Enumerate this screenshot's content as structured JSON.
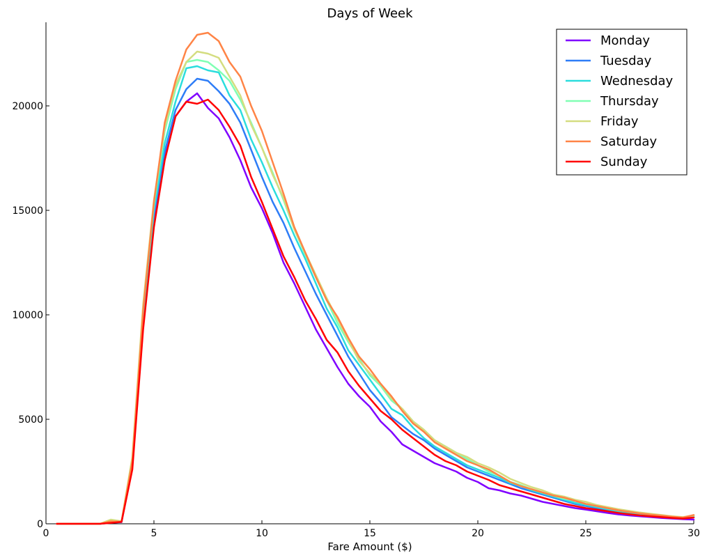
{
  "chart_data": {
    "type": "line",
    "title": "Days of Week",
    "xlabel": "Fare Amount ($)",
    "ylabel": "",
    "xlim": [
      0,
      30
    ],
    "ylim": [
      0,
      24000
    ],
    "xticks": [
      0,
      5,
      10,
      15,
      20,
      25,
      30
    ],
    "yticks": [
      0,
      5000,
      10000,
      15000,
      20000
    ],
    "grid": false,
    "legend_position": "top-right",
    "x": [
      0.5,
      1.0,
      1.5,
      2.0,
      2.5,
      3.0,
      3.5,
      4.0,
      4.5,
      5.0,
      5.5,
      6.0,
      6.5,
      7.0,
      7.5,
      8.0,
      8.5,
      9.0,
      9.5,
      10.0,
      10.5,
      11.0,
      11.5,
      12.0,
      12.5,
      13.0,
      13.5,
      14.0,
      14.5,
      15.0,
      15.5,
      16.0,
      16.5,
      17.0,
      17.5,
      18.0,
      18.5,
      19.0,
      19.5,
      20.0,
      20.5,
      21.0,
      21.5,
      22.0,
      22.5,
      23.0,
      23.5,
      24.0,
      24.5,
      25.0,
      25.5,
      26.0,
      26.5,
      27.0,
      27.5,
      28.0,
      28.5,
      29.0,
      29.5,
      30.0
    ],
    "series": [
      {
        "name": "Monday",
        "color": "#8000ff",
        "values": [
          0,
          0,
          0,
          0,
          0,
          50,
          80,
          2800,
          9500,
          14500,
          17500,
          19500,
          20200,
          20600,
          19900,
          19400,
          18500,
          17400,
          16100,
          15100,
          13900,
          12500,
          11500,
          10400,
          9300,
          8400,
          7500,
          6700,
          6100,
          5600,
          4900,
          4400,
          3800,
          3500,
          3200,
          2900,
          2700,
          2500,
          2200,
          2000,
          1700,
          1600,
          1450,
          1350,
          1200,
          1050,
          950,
          850,
          750,
          680,
          600,
          520,
          450,
          400,
          360,
          320,
          280,
          250,
          220,
          200
        ]
      },
      {
        "name": "Tuesday",
        "color": "#2e7df7",
        "values": [
          0,
          0,
          0,
          0,
          0,
          60,
          90,
          2900,
          9800,
          14800,
          17800,
          19800,
          20800,
          21300,
          21200,
          20700,
          20100,
          19200,
          17900,
          16600,
          15400,
          14400,
          13200,
          12100,
          11000,
          10000,
          9000,
          8000,
          7200,
          6400,
          5800,
          5100,
          4700,
          4300,
          4000,
          3600,
          3300,
          3000,
          2700,
          2500,
          2300,
          2100,
          1900,
          1700,
          1550,
          1400,
          1250,
          1100,
          950,
          850,
          750,
          650,
          560,
          500,
          450,
          400,
          350,
          300,
          270,
          300
        ]
      },
      {
        "name": "Wednesday",
        "color": "#2adddd",
        "values": [
          0,
          0,
          0,
          0,
          0,
          70,
          100,
          3000,
          10000,
          15000,
          18200,
          20200,
          21800,
          21900,
          21700,
          21600,
          20500,
          19800,
          18400,
          17300,
          16100,
          15000,
          13800,
          12700,
          11500,
          10300,
          9400,
          8300,
          7600,
          6900,
          6200,
          5500,
          5200,
          4600,
          4100,
          3700,
          3400,
          3100,
          2800,
          2600,
          2400,
          2200,
          1950,
          1800,
          1600,
          1450,
          1300,
          1150,
          1000,
          900,
          800,
          700,
          600,
          530,
          470,
          420,
          370,
          320,
          290,
          350
        ]
      },
      {
        "name": "Thursday",
        "color": "#80ffb4",
        "values": [
          0,
          0,
          0,
          0,
          0,
          100,
          110,
          3100,
          10300,
          15300,
          18800,
          20800,
          22100,
          22200,
          22100,
          21700,
          21200,
          20300,
          19200,
          18000,
          16800,
          15500,
          14100,
          12900,
          11800,
          10700,
          9600,
          8700,
          7900,
          7100,
          6600,
          5900,
          5500,
          4900,
          4500,
          4000,
          3700,
          3400,
          3100,
          2800,
          2500,
          2300,
          2000,
          1850,
          1650,
          1500,
          1350,
          1200,
          1100,
          950,
          850,
          750,
          650,
          580,
          510,
          450,
          400,
          350,
          310,
          380
        ]
      },
      {
        "name": "Friday",
        "color": "#d4dd80",
        "values": [
          0,
          0,
          0,
          0,
          0,
          200,
          120,
          3200,
          10500,
          15500,
          19000,
          21000,
          22100,
          22600,
          22500,
          22300,
          21400,
          20500,
          19100,
          18000,
          16700,
          15600,
          14100,
          13000,
          11900,
          10800,
          9800,
          8800,
          7800,
          7200,
          6700,
          6000,
          5500,
          4900,
          4500,
          4000,
          3700,
          3400,
          3200,
          2900,
          2700,
          2450,
          2150,
          1950,
          1750,
          1600,
          1400,
          1300,
          1150,
          1050,
          900,
          800,
          700,
          620,
          540,
          480,
          420,
          360,
          320,
          400
        ]
      },
      {
        "name": "Saturday",
        "color": "#ff8446",
        "values": [
          0,
          0,
          0,
          0,
          0,
          120,
          100,
          3000,
          10200,
          15400,
          19200,
          21200,
          22700,
          23400,
          23500,
          23100,
          22100,
          21400,
          20000,
          18800,
          17300,
          15800,
          14200,
          13000,
          11800,
          10700,
          9900,
          8900,
          8000,
          7400,
          6700,
          6100,
          5400,
          4800,
          4400,
          3900,
          3600,
          3300,
          3000,
          2800,
          2600,
          2300,
          2000,
          1800,
          1650,
          1500,
          1350,
          1250,
          1100,
          950,
          850,
          750,
          650,
          570,
          500,
          440,
          390,
          340,
          300,
          420
        ]
      },
      {
        "name": "Sunday",
        "color": "#ff0000",
        "values": [
          0,
          0,
          0,
          0,
          0,
          40,
          90,
          2600,
          9300,
          14200,
          17400,
          19500,
          20200,
          20100,
          20300,
          19800,
          19000,
          18100,
          16600,
          15400,
          14100,
          12800,
          11800,
          10700,
          9800,
          8800,
          8200,
          7300,
          6600,
          6000,
          5400,
          5000,
          4500,
          4100,
          3700,
          3300,
          3000,
          2800,
          2500,
          2300,
          2100,
          1850,
          1700,
          1550,
          1400,
          1250,
          1100,
          950,
          850,
          750,
          680,
          600,
          520,
          460,
          400,
          360,
          320,
          280,
          250,
          300
        ]
      }
    ]
  }
}
